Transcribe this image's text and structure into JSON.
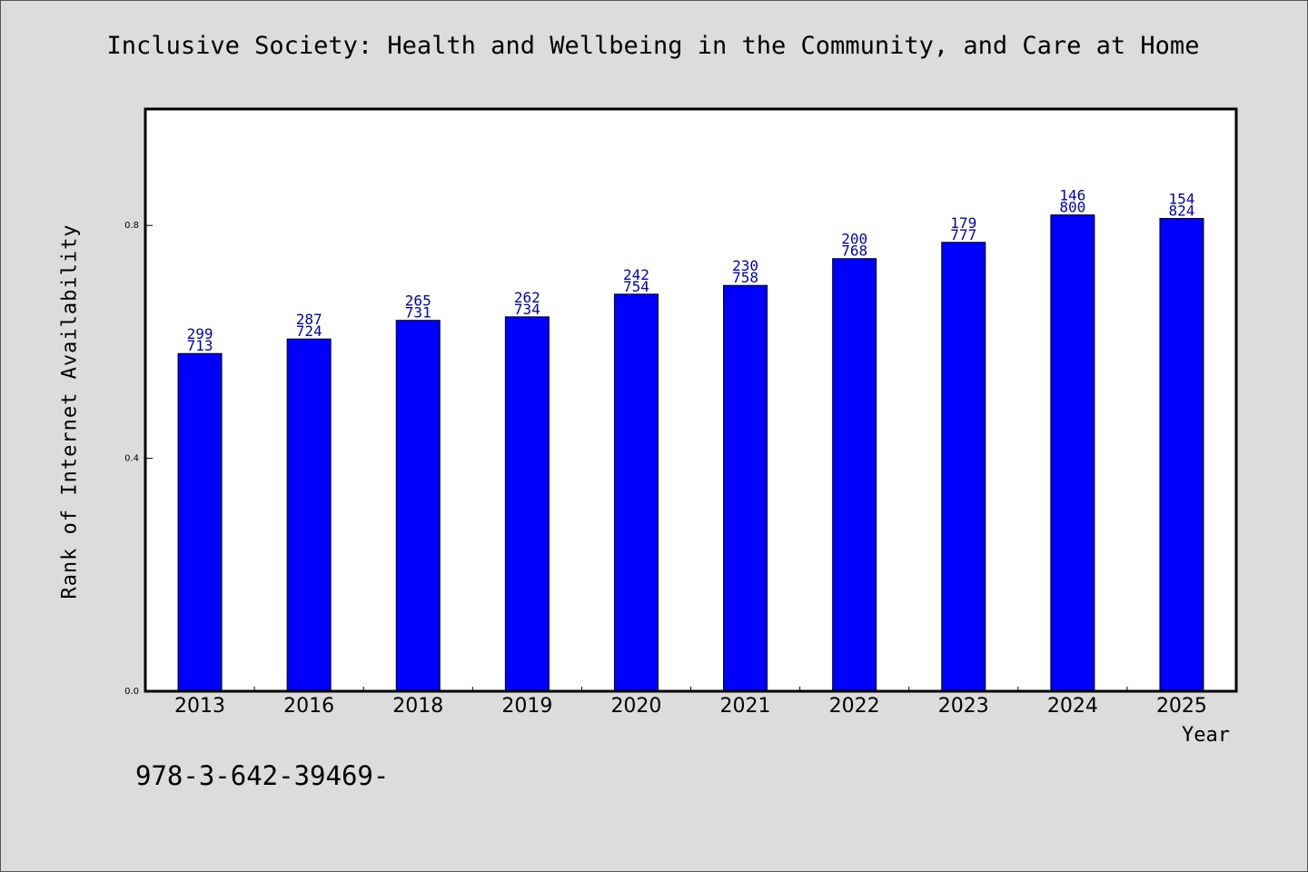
{
  "chart_data": {
    "type": "bar",
    "title": "Inclusive Society: Health and Wellbeing in the Community, and Care at Home",
    "xlabel": "Year",
    "ylabel": "Rank of Internet Availability",
    "categories": [
      "2013",
      "2016",
      "2018",
      "2019",
      "2020",
      "2021",
      "2022",
      "2023",
      "2024",
      "2025"
    ],
    "values": [
      0.58,
      0.605,
      0.637,
      0.643,
      0.682,
      0.697,
      0.743,
      0.771,
      0.818,
      0.812
    ],
    "annotations": [
      [
        "299",
        "713"
      ],
      [
        "287",
        "724"
      ],
      [
        "265",
        "731"
      ],
      [
        "262",
        "734"
      ],
      [
        "242",
        "754"
      ],
      [
        "230",
        "758"
      ],
      [
        "200",
        "768"
      ],
      [
        "179",
        "777"
      ],
      [
        "146",
        "800"
      ],
      [
        "154",
        "824"
      ]
    ],
    "ylim": [
      0,
      1.0
    ],
    "yticks": [
      "0.0",
      "0.4",
      "0.8"
    ],
    "bar_color": "#0000ff",
    "annotation_color": "#0000cc",
    "plot_background": "#ffffff",
    "page_background": "#dcdcdc",
    "grid": false,
    "footnote": "978-3-642-39469-"
  }
}
